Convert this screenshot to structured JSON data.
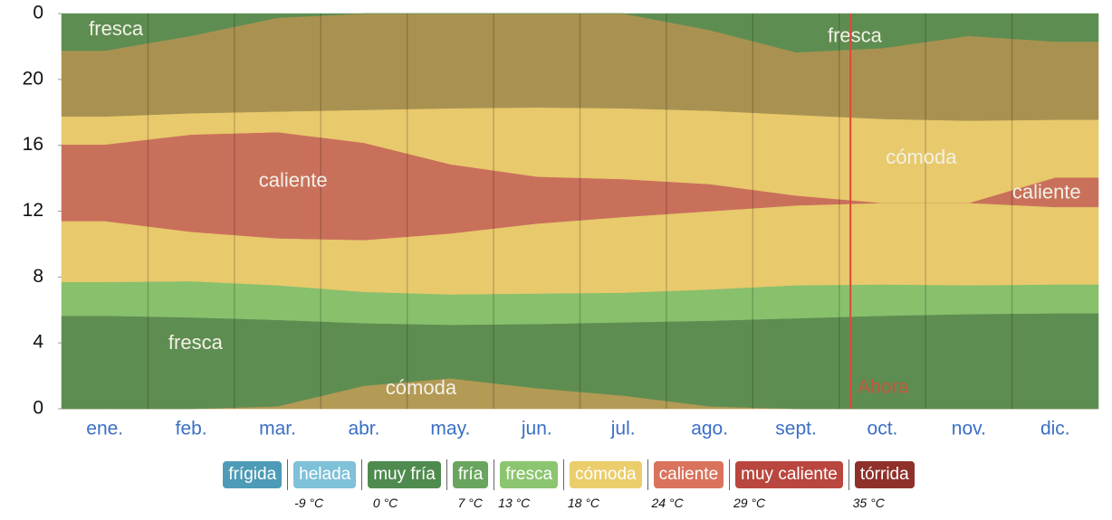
{
  "chart_data": {
    "type": "stacked-area",
    "categories": [
      "ene.",
      "feb.",
      "mar.",
      "abr.",
      "may.",
      "jun.",
      "jul.",
      "ago.",
      "sept.",
      "oct.",
      "nov.",
      "dic."
    ],
    "ylim": [
      0,
      24
    ],
    "yticks": [
      {
        "value": 24,
        "label": "0"
      },
      20,
      16,
      12,
      8,
      4,
      0
    ],
    "series": [
      {
        "color": "#b39a55",
        "values": [
          0,
          0,
          0.15,
          1.4,
          1.85,
          1.25,
          0.8,
          0.15,
          0,
          0,
          0,
          0
        ]
      },
      {
        "color": "#5e8d51",
        "values": [
          5.65,
          5.55,
          5.25,
          3.8,
          3.25,
          3.9,
          4.45,
          5.2,
          5.5,
          5.65,
          5.75,
          5.8
        ]
      },
      {
        "color": "#88c06c",
        "values": [
          2.05,
          2.2,
          2.1,
          1.9,
          1.85,
          1.85,
          1.8,
          1.9,
          2.0,
          1.9,
          1.75,
          1.75
        ]
      },
      {
        "color": "#e8c96c",
        "values": [
          3.7,
          3.0,
          2.85,
          3.15,
          3.7,
          4.25,
          4.6,
          4.75,
          4.85,
          4.95,
          5.0,
          4.7
        ]
      },
      {
        "color": "#c9705b",
        "values": [
          4.65,
          5.9,
          6.45,
          5.9,
          4.2,
          2.85,
          2.3,
          1.65,
          0.6,
          0,
          0,
          1.8
        ]
      },
      {
        "color": "#e8c96c",
        "values": [
          1.7,
          1.3,
          1.25,
          2.0,
          3.4,
          4.2,
          4.3,
          4.45,
          4.9,
          5.1,
          5.0,
          3.5
        ]
      },
      {
        "color": "#a99251",
        "values": [
          4.0,
          4.7,
          5.7,
          5.85,
          5.75,
          5.7,
          5.75,
          4.9,
          3.8,
          4.3,
          5.15,
          4.75
        ]
      },
      {
        "color": "#5e8d51",
        "values": [
          2.25,
          1.35,
          0.25,
          0,
          0,
          0,
          0,
          1.0,
          2.35,
          2.1,
          1.35,
          1.7
        ]
      }
    ],
    "annotations": [
      {
        "text": "fresca",
        "x": 0.63,
        "y": 23.0
      },
      {
        "text": "fresca",
        "x": 9.18,
        "y": 22.6
      },
      {
        "text": "caliente",
        "x": 2.68,
        "y": 13.8
      },
      {
        "text": "cómoda",
        "x": 9.95,
        "y": 15.2
      },
      {
        "text": "caliente",
        "x": 11.4,
        "y": 13.1
      },
      {
        "text": "fresca",
        "x": 1.55,
        "y": 3.95
      },
      {
        "text": "cómoda",
        "x": 4.16,
        "y": 1.2
      }
    ],
    "now": {
      "label": "Ahora",
      "x": 9.13,
      "color": "#e0473a"
    },
    "legend": [
      {
        "name": "frígida",
        "color": "#4d9bb6"
      },
      {
        "name": "helada",
        "color": "#7ec1d8"
      },
      {
        "name": "muy fría",
        "color": "#4f8b4f"
      },
      {
        "name": "fría",
        "color": "#69a55e"
      },
      {
        "name": "fresca",
        "color": "#8cc56f"
      },
      {
        "name": "cómoda",
        "color": "#ebcd6c"
      },
      {
        "name": "caliente",
        "color": "#d9735d"
      },
      {
        "name": "muy caliente",
        "color": "#b9473f"
      },
      {
        "name": "tórrida",
        "color": "#8f302b"
      }
    ],
    "thresholds": [
      "-9 °C",
      "0 °C",
      "7 °C",
      "13 °C",
      "18 °C",
      "24 °C",
      "29 °C",
      "35 °C"
    ]
  }
}
